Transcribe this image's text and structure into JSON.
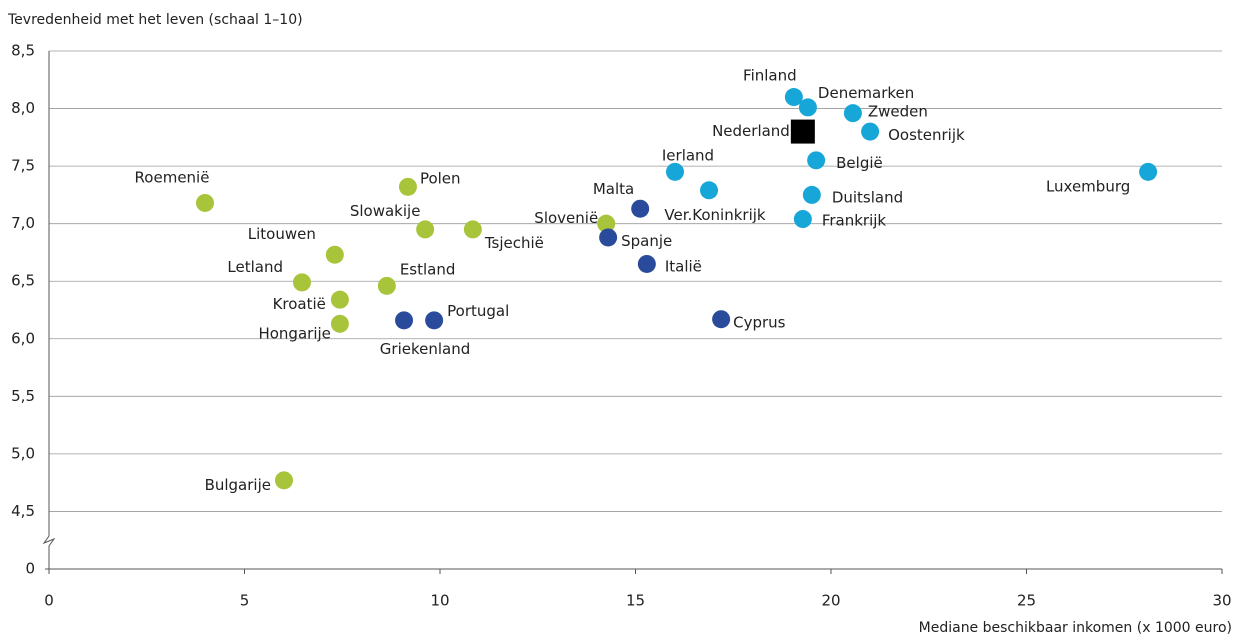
{
  "chart_data": {
    "type": "scatter",
    "y_axis_label": "Tevredenheid met het leven (schaal 1–10)",
    "x_axis_label": "Mediane beschikbaar inkomen (x 1000 euro)",
    "xlim": [
      0,
      30
    ],
    "xticks": [
      0,
      5,
      10,
      15,
      20,
      25,
      30
    ],
    "ylim": [
      4.0,
      8.5
    ],
    "yticks": [
      0,
      {
        "value": 4.5,
        "label": "4,5"
      },
      {
        "value": 5.0,
        "label": "5,0"
      },
      {
        "value": 5.5,
        "label": "5,5"
      },
      {
        "value": 6.0,
        "label": "6,0"
      },
      {
        "value": 6.5,
        "label": "6,5"
      },
      {
        "value": 7.0,
        "label": "7,0"
      },
      {
        "value": 7.5,
        "label": "7,5"
      },
      {
        "value": 8.0,
        "label": "8,0"
      },
      {
        "value": 8.5,
        "label": "8,5"
      }
    ],
    "y_axis_break": true,
    "grid": true,
    "series": [
      {
        "color": "#a8c43a",
        "marker": "circle",
        "labels": [
          "Roemenië",
          "Polen",
          "Slowakije",
          "Tsjechië",
          "Litouwen",
          "Letland",
          "Estland",
          "Kroatië",
          "Hongarije",
          "Slovenië",
          "Bulgarije"
        ],
        "x": [
          3.99,
          9.18,
          9.62,
          10.84,
          7.31,
          6.47,
          8.64,
          7.44,
          7.44,
          14.25,
          6.01
        ],
        "values": [
          7.18,
          7.32,
          6.95,
          6.95,
          6.73,
          6.49,
          6.46,
          6.34,
          6.13,
          7.0,
          4.77
        ]
      },
      {
        "color": "#2a4b9b",
        "marker": "circle",
        "labels": [
          "Malta",
          "Spanje",
          "Italië",
          "Griekenland",
          "Portugal",
          "Cyprus"
        ],
        "x": [
          15.12,
          14.3,
          15.29,
          9.08,
          9.85,
          17.19
        ],
        "values": [
          7.13,
          6.88,
          6.65,
          6.16,
          6.16,
          6.17
        ]
      },
      {
        "color": "#17a6d8",
        "marker": "circle",
        "labels": [
          "Finland",
          "Denemarken",
          "Zweden",
          "Oostenrijk",
          "België",
          "Ierland",
          "Ver.Koninkrijk",
          "Duitsland",
          "Frankrijk",
          "Luxemburg"
        ],
        "x": [
          19.05,
          19.41,
          20.56,
          21.0,
          19.62,
          16.01,
          16.88,
          19.51,
          19.28,
          28.11
        ],
        "values": [
          8.1,
          8.01,
          7.96,
          7.8,
          7.55,
          7.45,
          7.29,
          7.25,
          7.04,
          7.45
        ]
      },
      {
        "color": "#000000",
        "marker": "square",
        "labels": [
          "Nederland"
        ],
        "x": [
          19.28
        ],
        "values": [
          7.8
        ]
      }
    ]
  }
}
